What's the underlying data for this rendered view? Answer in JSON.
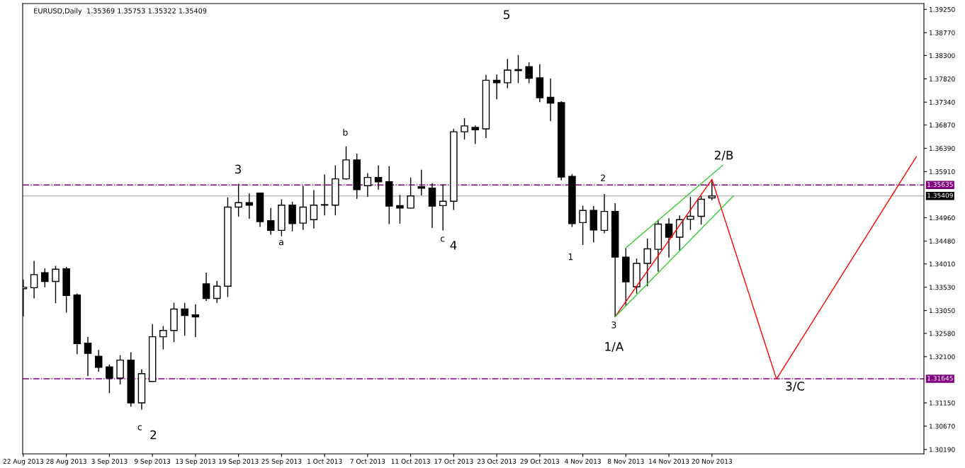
{
  "chart_data": {
    "type": "candlestick",
    "title": "EURUSD,Daily  1.35369 1.35753 1.35322 1.35409",
    "categories": [
      "22 Aug 2013",
      null,
      null,
      null,
      "28 Aug 2013",
      null,
      null,
      null,
      "3 Sep 2013",
      null,
      null,
      null,
      "9 Sep 2013",
      null,
      null,
      null,
      "13 Sep 2013",
      null,
      null,
      null,
      "19 Sep 2013",
      null,
      null,
      null,
      "25 Sep 2013",
      null,
      null,
      null,
      "1 Oct 2013",
      null,
      null,
      null,
      "7 Oct 2013",
      null,
      null,
      null,
      "11 Oct 2013",
      null,
      null,
      null,
      "17 Oct 2013",
      null,
      null,
      null,
      "23 Oct 2013",
      null,
      null,
      null,
      "29 Oct 2013",
      null,
      null,
      null,
      "4 Nov 2013",
      null,
      null,
      null,
      "8 Nov 2013",
      null,
      null,
      null,
      "14 Nov 2013",
      null,
      null,
      null,
      "20 Nov 2013",
      null,
      null,
      null,
      null,
      null,
      null,
      null,
      null,
      null,
      null,
      null,
      null,
      null,
      null,
      null,
      null,
      null,
      null,
      null
    ],
    "ohlc": [
      [
        1.335,
        1.3369,
        1.3293,
        1.3353
      ],
      [
        1.3352,
        1.3407,
        1.333,
        1.3379
      ],
      [
        1.3383,
        1.3392,
        1.3353,
        1.3365
      ],
      [
        1.3365,
        1.3397,
        1.332,
        1.339
      ],
      [
        1.3391,
        1.3395,
        1.3301,
        1.3336
      ],
      [
        1.3337,
        1.334,
        1.3215,
        1.3237
      ],
      [
        1.3238,
        1.3251,
        1.317,
        1.3217
      ],
      [
        1.3211,
        1.3224,
        1.3179,
        1.3188
      ],
      [
        1.3189,
        1.3194,
        1.3135,
        1.3166
      ],
      [
        1.3166,
        1.3213,
        1.3153,
        1.3203
      ],
      [
        1.3203,
        1.3219,
        1.3107,
        1.3115
      ],
      [
        1.3115,
        1.3184,
        1.3101,
        1.3175
      ],
      [
        1.3159,
        1.3277,
        1.3159,
        1.3251
      ],
      [
        1.3251,
        1.3273,
        1.3225,
        1.3264
      ],
      [
        1.3264,
        1.3321,
        1.324,
        1.3308
      ],
      [
        1.3308,
        1.3321,
        1.3253,
        1.3295
      ],
      [
        1.3296,
        1.3318,
        1.325,
        1.3292
      ],
      [
        1.336,
        1.3383,
        1.3325,
        1.333
      ],
      [
        1.333,
        1.3366,
        1.3321,
        1.3355
      ],
      [
        1.3355,
        1.3538,
        1.3333,
        1.3518
      ],
      [
        1.3518,
        1.3566,
        1.3498,
        1.3527
      ],
      [
        1.3527,
        1.3546,
        1.3494,
        1.3522
      ],
      [
        1.3547,
        1.3548,
        1.3477,
        1.3488
      ],
      [
        1.349,
        1.3516,
        1.3461,
        1.347
      ],
      [
        1.347,
        1.3534,
        1.3458,
        1.3522
      ],
      [
        1.3522,
        1.3529,
        1.3468,
        1.3484
      ],
      [
        1.3485,
        1.3562,
        1.3471,
        1.3518
      ],
      [
        1.3492,
        1.3553,
        1.3474,
        1.3522
      ],
      [
        1.3522,
        1.3585,
        1.3501,
        1.3523
      ],
      [
        1.3522,
        1.3604,
        1.3501,
        1.3576
      ],
      [
        1.3576,
        1.3643,
        1.3574,
        1.3615
      ],
      [
        1.3615,
        1.3628,
        1.3535,
        1.3554
      ],
      [
        1.3562,
        1.3588,
        1.3539,
        1.3579
      ],
      [
        1.3579,
        1.3604,
        1.3554,
        1.357
      ],
      [
        1.357,
        1.3602,
        1.3483,
        1.352
      ],
      [
        1.3521,
        1.3543,
        1.3484,
        1.3516
      ],
      [
        1.3516,
        1.3579,
        1.3515,
        1.3541
      ],
      [
        1.356,
        1.3595,
        1.3542,
        1.3557
      ],
      [
        1.3557,
        1.3567,
        1.3475,
        1.352
      ],
      [
        1.3521,
        1.3565,
        1.347,
        1.353
      ],
      [
        1.353,
        1.3679,
        1.3512,
        1.3673
      ],
      [
        1.3673,
        1.3701,
        1.3657,
        1.3685
      ],
      [
        1.3682,
        1.3686,
        1.3648,
        1.3677
      ],
      [
        1.3679,
        1.379,
        1.366,
        1.3779
      ],
      [
        1.3779,
        1.3791,
        1.374,
        1.3774
      ],
      [
        1.3774,
        1.3823,
        1.3763,
        1.38
      ],
      [
        1.3801,
        1.3831,
        1.3773,
        1.3799
      ],
      [
        1.3807,
        1.3816,
        1.3773,
        1.3783
      ],
      [
        1.3784,
        1.3812,
        1.3734,
        1.3743
      ],
      [
        1.3744,
        1.3783,
        1.3695,
        1.3732
      ],
      [
        1.3733,
        1.3736,
        1.3573,
        1.358
      ],
      [
        1.3581,
        1.3586,
        1.3477,
        1.3484
      ],
      [
        1.3486,
        1.3521,
        1.344,
        1.3511
      ],
      [
        1.3511,
        1.352,
        1.3445,
        1.3471
      ],
      [
        1.347,
        1.3545,
        1.3464,
        1.3509
      ],
      [
        1.3509,
        1.3526,
        1.3292,
        1.3415
      ],
      [
        1.3415,
        1.3434,
        1.3314,
        1.3364
      ],
      [
        1.3354,
        1.3412,
        1.334,
        1.3402
      ],
      [
        1.3402,
        1.3453,
        1.3355,
        1.3432
      ],
      [
        1.3431,
        1.3492,
        1.3385,
        1.3483
      ],
      [
        1.3483,
        1.3495,
        1.3414,
        1.3456
      ],
      [
        1.3456,
        1.3501,
        1.3428,
        1.3492
      ],
      [
        1.3493,
        1.3539,
        1.3471,
        1.3499
      ],
      [
        1.3499,
        1.3541,
        1.3482,
        1.3534
      ],
      [
        1.35369,
        1.35753,
        1.35322,
        1.35409
      ],
      null,
      null,
      null,
      null,
      null,
      null,
      null,
      null,
      null,
      null,
      null,
      null,
      null,
      null,
      null,
      null,
      null,
      null,
      null
    ],
    "series": [
      {
        "type": "line",
        "color": "#ff0000",
        "values": [
          null,
          null,
          null,
          null,
          null,
          null,
          null,
          null,
          null,
          null,
          null,
          null,
          null,
          null,
          null,
          null,
          null,
          null,
          null,
          null,
          null,
          null,
          null,
          null,
          null,
          null,
          null,
          null,
          null,
          null,
          null,
          null,
          null,
          null,
          null,
          null,
          null,
          null,
          null,
          null,
          null,
          null,
          null,
          null,
          null,
          null,
          null,
          null,
          null,
          null,
          null,
          null,
          null,
          null,
          null,
          1.3292,
          null,
          null,
          null,
          null,
          null,
          null,
          null,
          null,
          1.3575,
          null,
          null,
          null,
          null,
          null,
          1.3164,
          null,
          null,
          null,
          null,
          null,
          null,
          null,
          null,
          null,
          null,
          null,
          null,
          1.3622
        ]
      },
      {
        "type": "line",
        "color": "#33cc33",
        "values": [
          null,
          null,
          null,
          null,
          null,
          null,
          null,
          null,
          null,
          null,
          null,
          null,
          null,
          null,
          null,
          null,
          null,
          null,
          null,
          null,
          null,
          null,
          null,
          null,
          null,
          null,
          null,
          null,
          null,
          null,
          null,
          null,
          null,
          null,
          null,
          null,
          null,
          null,
          null,
          null,
          null,
          null,
          null,
          null,
          null,
          null,
          null,
          null,
          null,
          null,
          null,
          null,
          null,
          null,
          null,
          null,
          1.3434,
          null,
          null,
          null,
          null,
          null,
          null,
          null,
          null,
          1.3604,
          null,
          null,
          null,
          null,
          null,
          null,
          null,
          null,
          null,
          null,
          null,
          null,
          null,
          null,
          null,
          null,
          null,
          null
        ]
      },
      {
        "type": "line",
        "color": "#33cc33",
        "values": [
          null,
          null,
          null,
          null,
          null,
          null,
          null,
          null,
          null,
          null,
          null,
          null,
          null,
          null,
          null,
          null,
          null,
          null,
          null,
          null,
          null,
          null,
          null,
          null,
          null,
          null,
          null,
          null,
          null,
          null,
          null,
          null,
          null,
          null,
          null,
          null,
          null,
          null,
          null,
          null,
          null,
          null,
          null,
          null,
          null,
          null,
          null,
          null,
          null,
          null,
          null,
          null,
          null,
          null,
          null,
          1.3292,
          null,
          null,
          null,
          null,
          null,
          null,
          null,
          null,
          null,
          null,
          1.3541,
          null,
          null,
          null,
          null,
          null,
          null,
          null,
          null,
          null,
          null,
          null,
          null,
          null,
          null,
          null,
          null,
          null
        ]
      }
    ],
    "ylim": [
      1.301,
      1.3937
    ],
    "yticks": [
      {
        "value": 1.3925,
        "label": "1.39250"
      },
      {
        "value": 1.3877,
        "label": "1.38770"
      },
      {
        "value": 1.383,
        "label": "1.38300"
      },
      {
        "value": 1.3782,
        "label": "1.37820"
      },
      {
        "value": 1.3734,
        "label": "1.37340"
      },
      {
        "value": 1.3687,
        "label": "1.36870"
      },
      {
        "value": 1.3639,
        "label": "1.36390"
      },
      {
        "value": 1.3591,
        "label": "1.35910"
      },
      {
        "value": 1.3496,
        "label": "1.34960"
      },
      {
        "value": 1.3448,
        "label": "1.34480"
      },
      {
        "value": 1.3401,
        "label": "1.34010"
      },
      {
        "value": 1.3353,
        "label": "1.33530"
      },
      {
        "value": 1.3305,
        "label": "1.33050"
      },
      {
        "value": 1.3258,
        "label": "1.32580"
      },
      {
        "value": 1.321,
        "label": "1.32100"
      },
      {
        "value": 1.3115,
        "label": "1.31150"
      },
      {
        "value": 1.3067,
        "label": "1.30670"
      },
      {
        "value": 1.3019,
        "label": "1.30190"
      }
    ],
    "ref_lines": [
      {
        "axis": "y",
        "value": 1.35635,
        "label": "1.35635",
        "color": "#800080",
        "line_style": "dashdot"
      },
      {
        "axis": "y",
        "value": 1.31645,
        "label": "1.31645",
        "color": "#800080",
        "line_style": "dashdot"
      },
      {
        "axis": "y",
        "value": 1.35409,
        "label": "1.35409",
        "color": "#c0c0c0",
        "line_style": "solid"
      }
    ],
    "annotations": [
      "c",
      "2",
      "3",
      "a",
      "b",
      {
        "text": "c",
        "y": 1.347
      },
      "4",
      "5",
      "1",
      "2",
      {
        "text": "3",
        "y": 1.3292
      },
      "1/A",
      "2/B",
      "3/C"
    ],
    "grid": false,
    "legend": false
  }
}
